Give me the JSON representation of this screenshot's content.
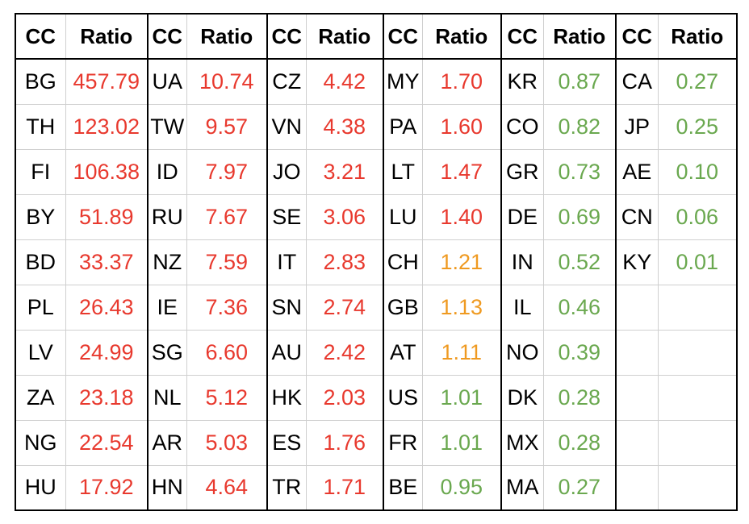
{
  "header": {
    "cc_label": "CC",
    "ratio_label": "Ratio"
  },
  "colors": {
    "high": "#e8392e",
    "mid": "#ef9a21",
    "low": "#6aa84f"
  },
  "groups": [
    {
      "rows": [
        {
          "cc": "BG",
          "ratio": "457.79",
          "level": "high"
        },
        {
          "cc": "TH",
          "ratio": "123.02",
          "level": "high"
        },
        {
          "cc": "FI",
          "ratio": "106.38",
          "level": "high"
        },
        {
          "cc": "BY",
          "ratio": "51.89",
          "level": "high"
        },
        {
          "cc": "BD",
          "ratio": "33.37",
          "level": "high"
        },
        {
          "cc": "PL",
          "ratio": "26.43",
          "level": "high"
        },
        {
          "cc": "LV",
          "ratio": "24.99",
          "level": "high"
        },
        {
          "cc": "ZA",
          "ratio": "23.18",
          "level": "high"
        },
        {
          "cc": "NG",
          "ratio": "22.54",
          "level": "high"
        },
        {
          "cc": "HU",
          "ratio": "17.92",
          "level": "high"
        }
      ]
    },
    {
      "rows": [
        {
          "cc": "UA",
          "ratio": "10.74",
          "level": "high"
        },
        {
          "cc": "TW",
          "ratio": "9.57",
          "level": "high"
        },
        {
          "cc": "ID",
          "ratio": "7.97",
          "level": "high"
        },
        {
          "cc": "RU",
          "ratio": "7.67",
          "level": "high"
        },
        {
          "cc": "NZ",
          "ratio": "7.59",
          "level": "high"
        },
        {
          "cc": "IE",
          "ratio": "7.36",
          "level": "high"
        },
        {
          "cc": "SG",
          "ratio": "6.60",
          "level": "high"
        },
        {
          "cc": "NL",
          "ratio": "5.12",
          "level": "high"
        },
        {
          "cc": "AR",
          "ratio": "5.03",
          "level": "high"
        },
        {
          "cc": "HN",
          "ratio": "4.64",
          "level": "high"
        }
      ]
    },
    {
      "rows": [
        {
          "cc": "CZ",
          "ratio": "4.42",
          "level": "high"
        },
        {
          "cc": "VN",
          "ratio": "4.38",
          "level": "high"
        },
        {
          "cc": "JO",
          "ratio": "3.21",
          "level": "high"
        },
        {
          "cc": "SE",
          "ratio": "3.06",
          "level": "high"
        },
        {
          "cc": "IT",
          "ratio": "2.83",
          "level": "high"
        },
        {
          "cc": "SN",
          "ratio": "2.74",
          "level": "high"
        },
        {
          "cc": "AU",
          "ratio": "2.42",
          "level": "high"
        },
        {
          "cc": "HK",
          "ratio": "2.03",
          "level": "high"
        },
        {
          "cc": "ES",
          "ratio": "1.76",
          "level": "high"
        },
        {
          "cc": "TR",
          "ratio": "1.71",
          "level": "high"
        }
      ]
    },
    {
      "rows": [
        {
          "cc": "MY",
          "ratio": "1.70",
          "level": "high"
        },
        {
          "cc": "PA",
          "ratio": "1.60",
          "level": "high"
        },
        {
          "cc": "LT",
          "ratio": "1.47",
          "level": "high"
        },
        {
          "cc": "LU",
          "ratio": "1.40",
          "level": "high"
        },
        {
          "cc": "CH",
          "ratio": "1.21",
          "level": "mid"
        },
        {
          "cc": "GB",
          "ratio": "1.13",
          "level": "mid"
        },
        {
          "cc": "AT",
          "ratio": "1.11",
          "level": "mid"
        },
        {
          "cc": "US",
          "ratio": "1.01",
          "level": "low"
        },
        {
          "cc": "FR",
          "ratio": "1.01",
          "level": "low"
        },
        {
          "cc": "BE",
          "ratio": "0.95",
          "level": "low"
        }
      ]
    },
    {
      "rows": [
        {
          "cc": "KR",
          "ratio": "0.87",
          "level": "low"
        },
        {
          "cc": "CO",
          "ratio": "0.82",
          "level": "low"
        },
        {
          "cc": "GR",
          "ratio": "0.73",
          "level": "low"
        },
        {
          "cc": "DE",
          "ratio": "0.69",
          "level": "low"
        },
        {
          "cc": "IN",
          "ratio": "0.52",
          "level": "low"
        },
        {
          "cc": "IL",
          "ratio": "0.46",
          "level": "low"
        },
        {
          "cc": "NO",
          "ratio": "0.39",
          "level": "low"
        },
        {
          "cc": "DK",
          "ratio": "0.28",
          "level": "low"
        },
        {
          "cc": "MX",
          "ratio": "0.28",
          "level": "low"
        },
        {
          "cc": "MA",
          "ratio": "0.27",
          "level": "low"
        }
      ]
    },
    {
      "rows": [
        {
          "cc": "CA",
          "ratio": "0.27",
          "level": "low"
        },
        {
          "cc": "JP",
          "ratio": "0.25",
          "level": "low"
        },
        {
          "cc": "AE",
          "ratio": "0.10",
          "level": "low"
        },
        {
          "cc": "CN",
          "ratio": "0.06",
          "level": "low"
        },
        {
          "cc": "KY",
          "ratio": "0.01",
          "level": "low"
        },
        {
          "cc": "",
          "ratio": "",
          "level": ""
        },
        {
          "cc": "",
          "ratio": "",
          "level": ""
        },
        {
          "cc": "",
          "ratio": "",
          "level": ""
        },
        {
          "cc": "",
          "ratio": "",
          "level": ""
        },
        {
          "cc": "",
          "ratio": "",
          "level": ""
        }
      ]
    }
  ]
}
